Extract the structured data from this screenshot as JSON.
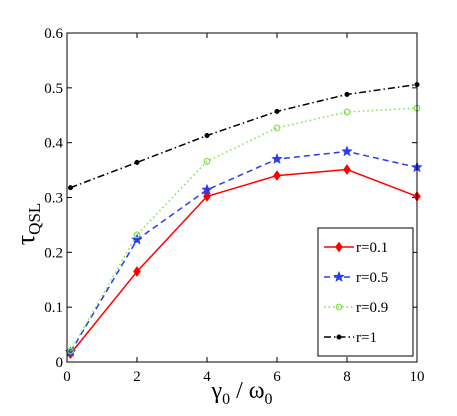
{
  "chart_data": {
    "type": "line",
    "xlabel": {
      "main": "γ",
      "sub1": "0",
      "sep": " / ω",
      "sub2": "0"
    },
    "ylabel": {
      "main": "τ",
      "sub": "QSL"
    },
    "xlim": [
      0,
      10
    ],
    "ylim": [
      0,
      0.6
    ],
    "xticks": [
      "0",
      "2",
      "4",
      "6",
      "8",
      "10"
    ],
    "yticks": [
      "0",
      "0.1",
      "0.2",
      "0.3",
      "0.4",
      "0.5",
      "0.6"
    ],
    "x": [
      0.1,
      2,
      4,
      6,
      8,
      10
    ],
    "grid": false,
    "legend_position": "bottom-right",
    "series": [
      {
        "name": "r=0.1",
        "values": [
          0.015,
          0.165,
          0.302,
          0.34,
          0.351,
          0.302
        ],
        "color": "#ff0000",
        "dash": "solid",
        "marker": "diamond"
      },
      {
        "name": "r=0.5",
        "values": [
          0.018,
          0.223,
          0.314,
          0.37,
          0.384,
          0.355
        ],
        "color": "#2a3cf0",
        "dash": "dashed",
        "marker": "star"
      },
      {
        "name": "r=0.9",
        "values": [
          0.02,
          0.232,
          0.366,
          0.427,
          0.456,
          0.463
        ],
        "color": "#7fe04a",
        "dash": "dotted",
        "marker": "circle"
      },
      {
        "name": "r=1",
        "values": [
          0.318,
          0.364,
          0.413,
          0.457,
          0.488,
          0.506
        ],
        "color": "#000000",
        "dash": "dashdot",
        "marker": "dot"
      }
    ]
  }
}
